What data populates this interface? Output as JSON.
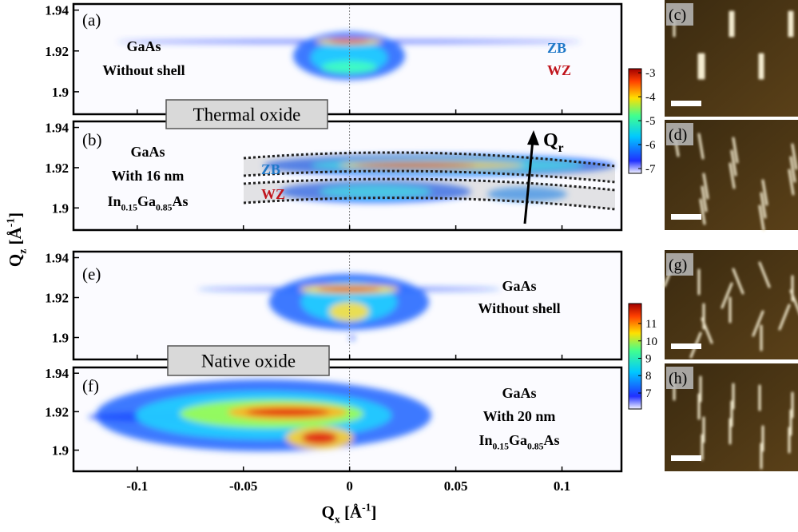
{
  "chart_data": [
    {
      "type": "heatmap",
      "panel": "(a)",
      "xlim": [
        -0.13,
        0.128
      ],
      "xticks": [
        -0.1,
        -0.05,
        0,
        0.05,
        0.1
      ],
      "ylim": [
        1.889,
        1.943
      ],
      "yticks": [
        1.9,
        1.92,
        1.94
      ],
      "annotations": [
        [
          {
            "text": "GaAs"
          }
        ],
        [
          {
            "text": "Without shell"
          }
        ]
      ],
      "labels": [
        {
          "text": "ZB",
          "color": "#1f78c8"
        },
        {
          "text": "WZ",
          "color": "#c0141c"
        }
      ],
      "colorbar": {
        "lim": [
          -7.2,
          -2.83
        ],
        "ticks": [
          -7,
          -6,
          -5,
          -4,
          -3
        ]
      }
    },
    {
      "type": "heatmap",
      "panel": "(b)",
      "oxide": "Thermal oxide",
      "xlim": [
        -0.13,
        0.128
      ],
      "xticks": [
        -0.1,
        -0.05,
        0,
        0.05,
        0.1
      ],
      "ylim": [
        1.889,
        1.943
      ],
      "yticks": [
        1.9,
        1.92,
        1.94
      ],
      "annotations": [
        [
          {
            "text": "GaAs"
          }
        ],
        [
          {
            "text": "With 16 nm"
          }
        ],
        [
          {
            "text": "In"
          },
          {
            "text": "0.15",
            "sub": true
          },
          {
            "text": "Ga"
          },
          {
            "text": "0.85",
            "sub": true
          },
          {
            "text": "As"
          }
        ]
      ],
      "labels": [
        {
          "text": "ZB",
          "color": "#1f78c8"
        },
        {
          "text": "WZ",
          "color": "#c0141c"
        }
      ],
      "arrow": [
        {
          "text": "Q"
        },
        {
          "text": "r",
          "sub": true
        }
      ]
    },
    {
      "type": "heatmap",
      "panel": "(e)",
      "xlim": [
        -0.13,
        0.128
      ],
      "xticks": [
        -0.1,
        -0.05,
        0,
        0.05,
        0.1
      ],
      "ylim": [
        1.889,
        1.943
      ],
      "yticks": [
        1.9,
        1.92,
        1.94
      ],
      "annotations": [
        [
          {
            "text": "GaAs"
          }
        ],
        [
          {
            "text": "Without shell"
          }
        ]
      ],
      "colorbar": {
        "lim": [
          6.08,
          12.15
        ],
        "ticks": [
          7,
          8,
          9,
          10,
          11
        ]
      }
    },
    {
      "type": "heatmap",
      "panel": "(f)",
      "oxide": "Native oxide",
      "xlim": [
        -0.13,
        0.128
      ],
      "xticks": [
        -0.1,
        -0.05,
        0,
        0.05,
        0.1
      ],
      "ylim": [
        1.889,
        1.943
      ],
      "yticks": [
        1.9,
        1.92,
        1.94
      ],
      "annotations": [
        [
          {
            "text": "GaAs"
          }
        ],
        [
          {
            "text": "With 20 nm"
          }
        ],
        [
          {
            "text": "In"
          },
          {
            "text": "0.15",
            "sub": true
          },
          {
            "text": "Ga"
          },
          {
            "text": "0.85",
            "sub": true
          },
          {
            "text": "As"
          }
        ]
      ],
      "xlabel": [
        {
          "text": "Q"
        },
        {
          "text": "x",
          "sub": true
        },
        {
          "text": " [Å"
        },
        {
          "text": "-1",
          "sup": true
        },
        {
          "text": "]"
        }
      ]
    }
  ],
  "ylabel": [
    {
      "text": "Q"
    },
    {
      "text": "z",
      "sub": true
    },
    {
      "text": " [Å"
    },
    {
      "text": "-1",
      "sup": true
    },
    {
      "text": "]"
    }
  ],
  "images": [
    "(c)",
    "(d)",
    "(g)",
    "(h)"
  ]
}
